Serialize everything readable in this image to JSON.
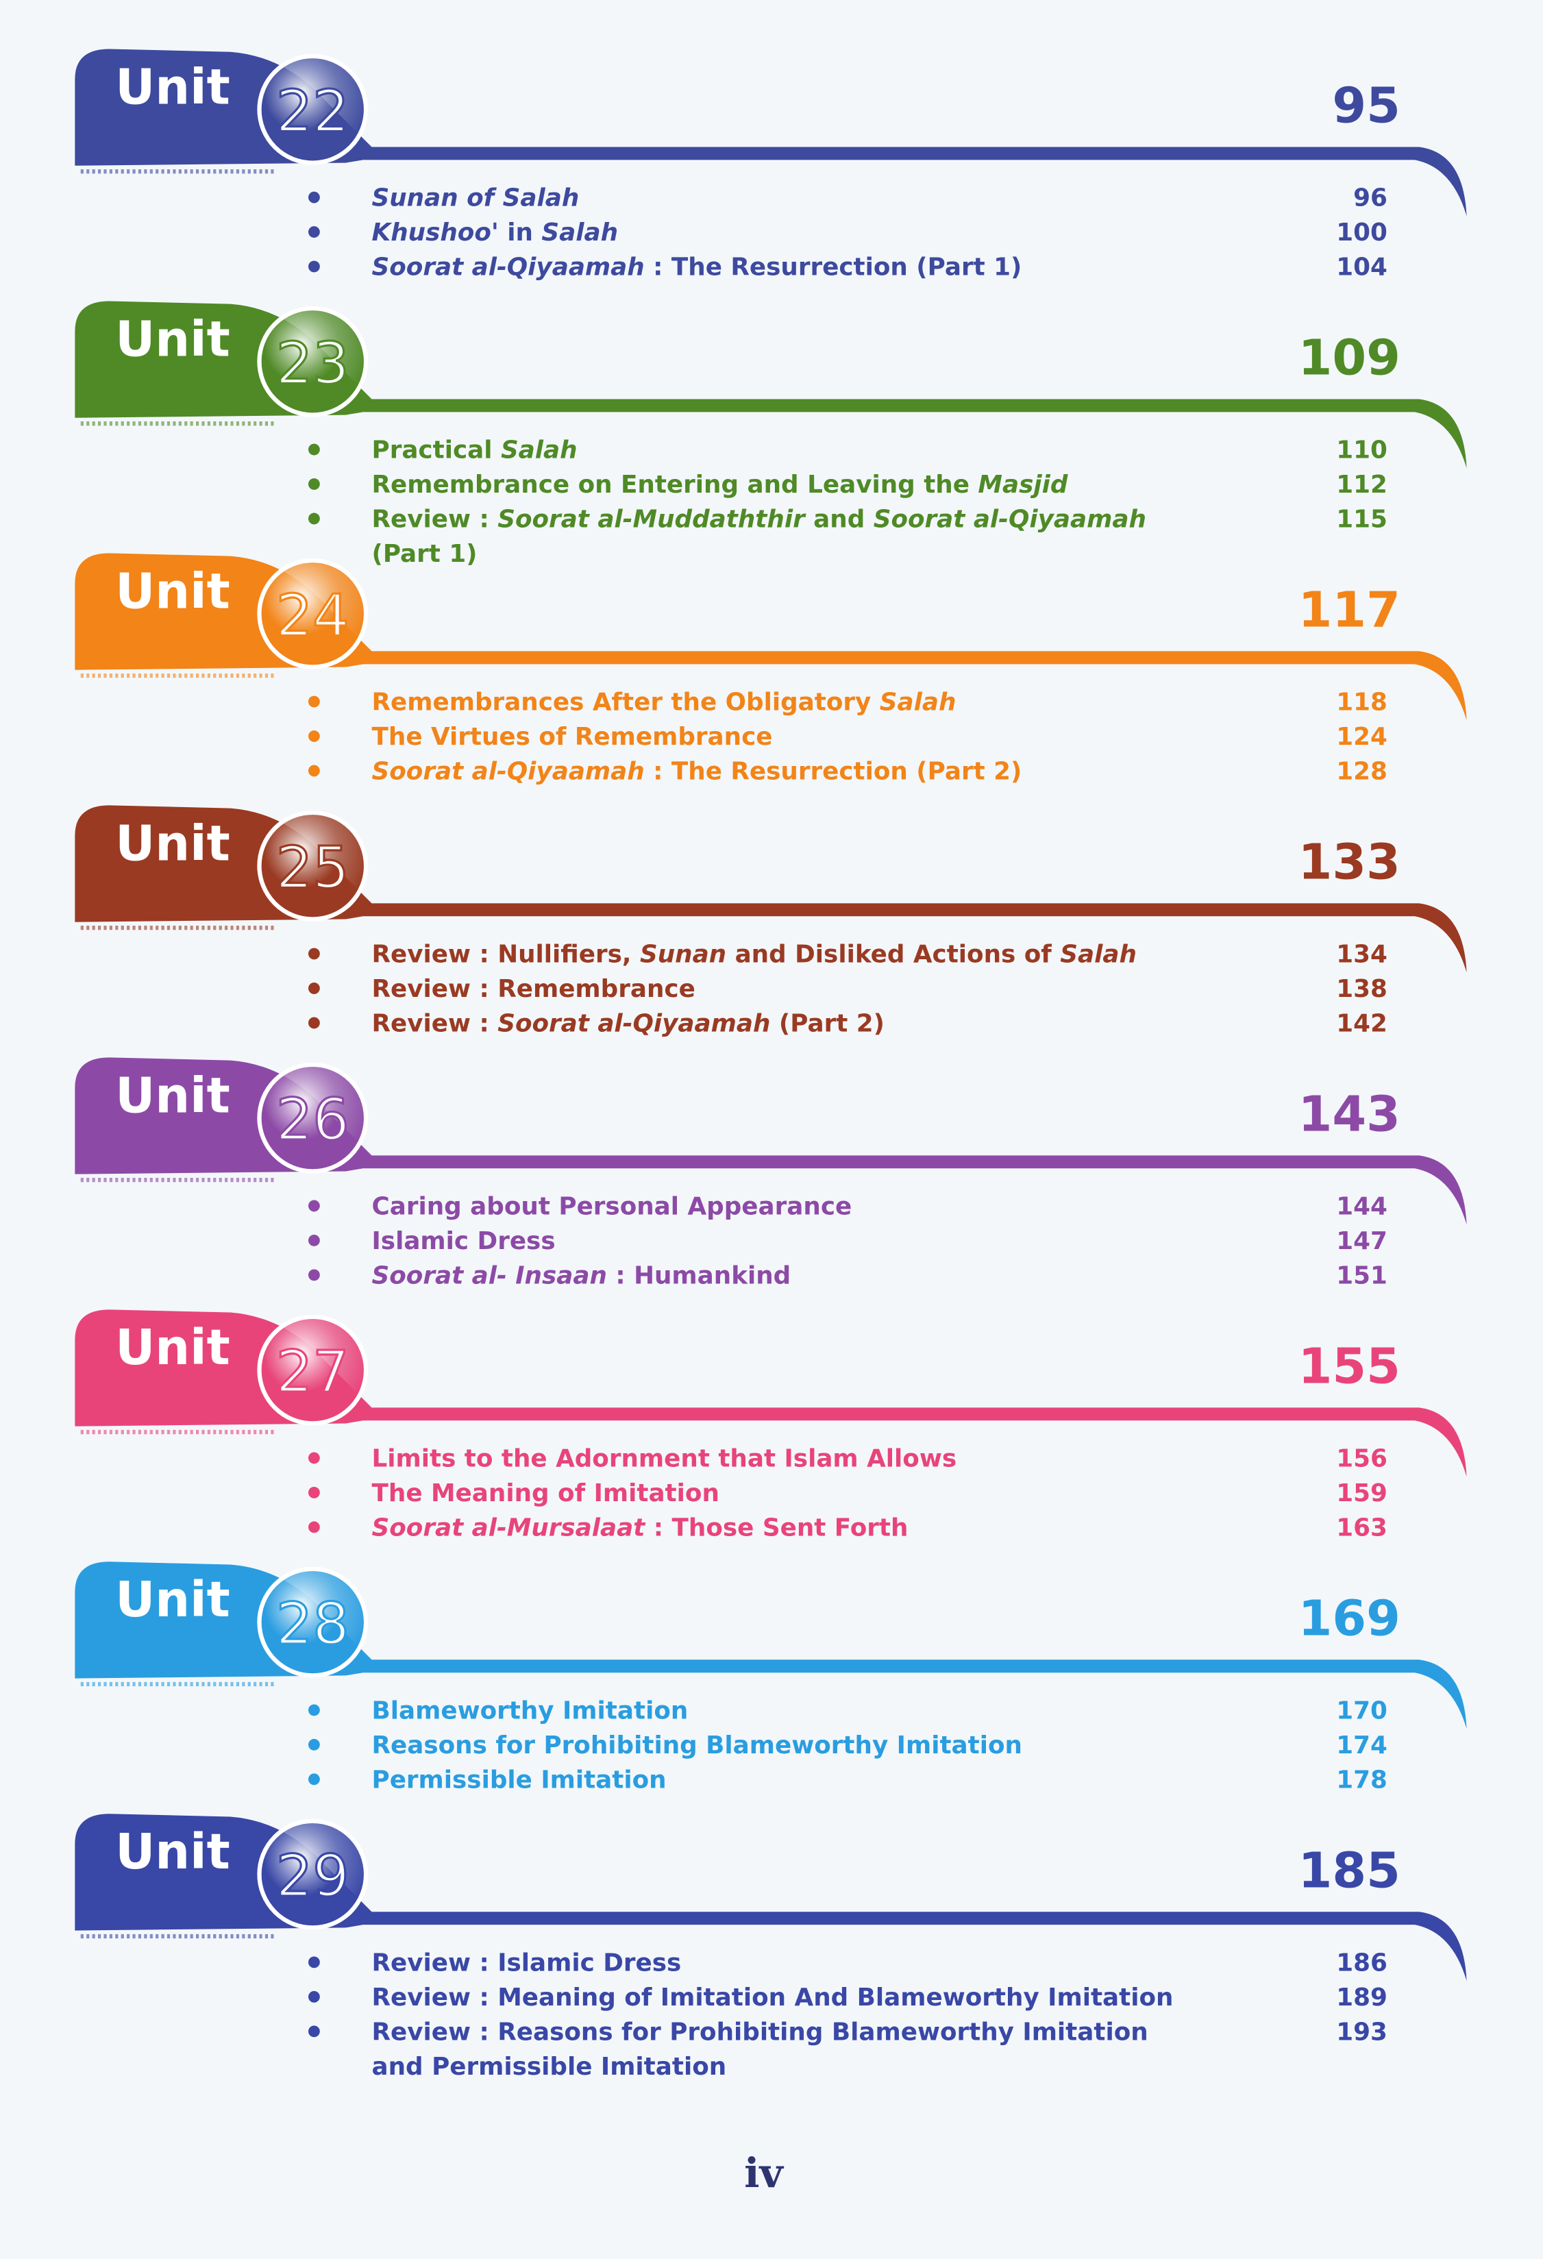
{
  "units": [
    {
      "label": "Unit",
      "number": "22",
      "page": "95",
      "color": "#3d4a9e",
      "items": [
        {
          "lines": [
            [
              {
                "text": "Sunan of Salah",
                "italic": true
              }
            ]
          ],
          "page": "96"
        },
        {
          "lines": [
            [
              {
                "text": "Khushoo'",
                "italic": true
              },
              {
                "text": " in "
              },
              {
                "text": "Salah",
                "italic": true
              }
            ]
          ],
          "page": "100"
        },
        {
          "lines": [
            [
              {
                "text": "Soorat al-Qiyaamah",
                "italic": true
              },
              {
                "text": " : The Resurrection (Part 1)"
              }
            ]
          ],
          "page": "104"
        }
      ]
    },
    {
      "label": "Unit",
      "number": "23",
      "page": "109",
      "color": "#4f8a26",
      "items": [
        {
          "lines": [
            [
              {
                "text": "Practical "
              },
              {
                "text": "Salah",
                "italic": true
              }
            ]
          ],
          "page": "110"
        },
        {
          "lines": [
            [
              {
                "text": "Remembrance on Entering and Leaving the "
              },
              {
                "text": "Masjid",
                "italic": true
              }
            ]
          ],
          "page": "112"
        },
        {
          "lines": [
            [
              {
                "text": "Review : "
              },
              {
                "text": "Soorat al-Muddaththir",
                "italic": true
              },
              {
                "text": " and "
              },
              {
                "text": "Soorat al-Qiyaamah",
                "italic": true
              }
            ],
            [
              {
                "text": "(Part 1)"
              }
            ]
          ],
          "page": "115"
        }
      ]
    },
    {
      "label": "Unit",
      "number": "24",
      "page": "117",
      "color": "#f28418",
      "items": [
        {
          "lines": [
            [
              {
                "text": "Remembrances After the Obligatory "
              },
              {
                "text": "Salah",
                "italic": true
              }
            ]
          ],
          "page": "118"
        },
        {
          "lines": [
            [
              {
                "text": "The Virtues of Remembrance"
              }
            ]
          ],
          "page": "124"
        },
        {
          "lines": [
            [
              {
                "text": "Soorat al-Qiyaamah",
                "italic": true
              },
              {
                "text": " : The Resurrection (Part 2)"
              }
            ]
          ],
          "page": "128"
        }
      ]
    },
    {
      "label": "Unit",
      "number": "25",
      "page": "133",
      "color": "#9a3a22",
      "items": [
        {
          "lines": [
            [
              {
                "text": "Review : Nullifiers, "
              },
              {
                "text": "Sunan",
                "italic": true
              },
              {
                "text": " and Disliked Actions of "
              },
              {
                "text": "Salah",
                "italic": true
              }
            ]
          ],
          "page": "134"
        },
        {
          "lines": [
            [
              {
                "text": "Review : Remembrance"
              }
            ]
          ],
          "page": "138"
        },
        {
          "lines": [
            [
              {
                "text": "Review : "
              },
              {
                "text": "Soorat al-Qiyaamah",
                "italic": true
              },
              {
                "text": " (Part 2)"
              }
            ]
          ],
          "page": "142"
        }
      ]
    },
    {
      "label": "Unit",
      "number": "26",
      "page": "143",
      "color": "#8c4aa6",
      "items": [
        {
          "lines": [
            [
              {
                "text": "Caring about Personal Appearance"
              }
            ]
          ],
          "page": "144"
        },
        {
          "lines": [
            [
              {
                "text": "Islamic Dress"
              }
            ]
          ],
          "page": "147"
        },
        {
          "lines": [
            [
              {
                "text": "Soorat al- Insaan",
                "italic": true
              },
              {
                "text": " : Humankind"
              }
            ]
          ],
          "page": "151"
        }
      ]
    },
    {
      "label": "Unit",
      "number": "27",
      "page": "155",
      "color": "#e8447a",
      "items": [
        {
          "lines": [
            [
              {
                "text": "Limits to the Adornment that Islam Allows"
              }
            ]
          ],
          "page": "156"
        },
        {
          "lines": [
            [
              {
                "text": "The Meaning of Imitation"
              }
            ]
          ],
          "page": "159"
        },
        {
          "lines": [
            [
              {
                "text": "Soorat al-Mursalaat",
                "italic": true
              },
              {
                "text": " : Those Sent Forth"
              }
            ]
          ],
          "page": "163"
        }
      ]
    },
    {
      "label": "Unit",
      "number": "28",
      "page": "169",
      "color": "#2a9de0",
      "items": [
        {
          "lines": [
            [
              {
                "text": "Blameworthy Imitation"
              }
            ]
          ],
          "page": "170"
        },
        {
          "lines": [
            [
              {
                "text": "Reasons for Prohibiting Blameworthy Imitation"
              }
            ]
          ],
          "page": "174"
        },
        {
          "lines": [
            [
              {
                "text": "Permissible Imitation"
              }
            ]
          ],
          "page": "178"
        }
      ]
    },
    {
      "label": "Unit",
      "number": "29",
      "page": "185",
      "color": "#3947a6",
      "items": [
        {
          "lines": [
            [
              {
                "text": "Review : Islamic Dress"
              }
            ]
          ],
          "page": "186"
        },
        {
          "lines": [
            [
              {
                "text": "Review : Meaning of Imitation And Blameworthy Imitation"
              }
            ]
          ],
          "page": "189"
        },
        {
          "lines": [
            [
              {
                "text": "Review : Reasons for Prohibiting Blameworthy Imitation"
              }
            ],
            [
              {
                "text": "and Permissible Imitation"
              }
            ]
          ],
          "page": "193"
        }
      ]
    }
  ],
  "footer": "iv"
}
